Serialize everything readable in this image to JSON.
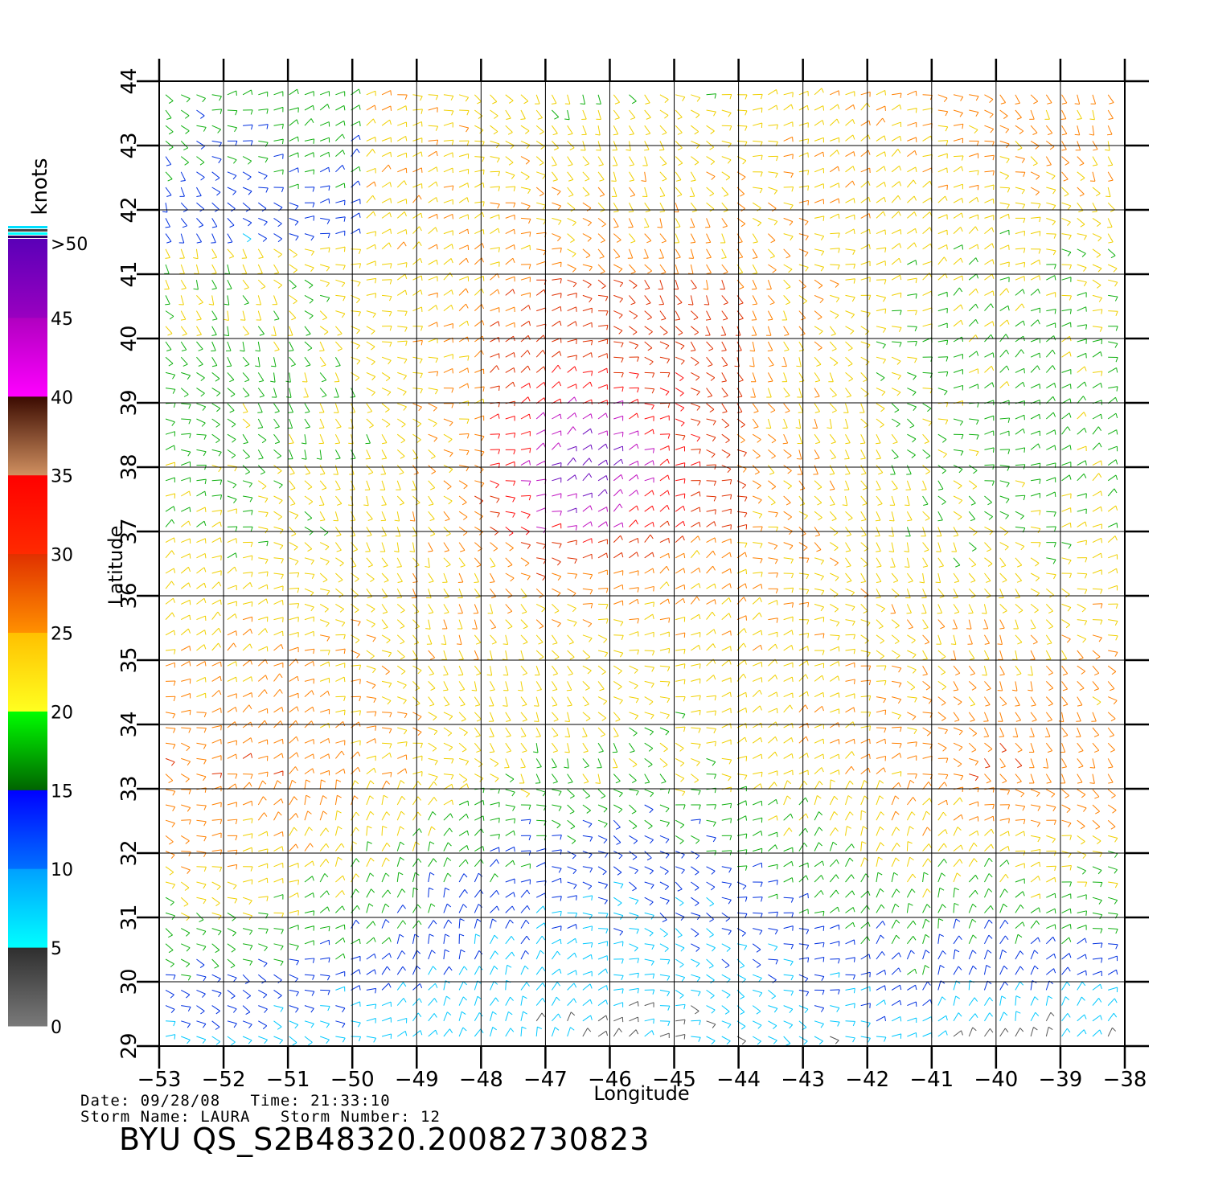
{
  "map": {
    "xlabel": "Longitude",
    "ylabel": "Latitude",
    "lon_ticks": [
      "−53",
      "−52",
      "−51",
      "−50",
      "−49",
      "−48",
      "−47",
      "−46",
      "−45",
      "−44",
      "−43",
      "−42",
      "−41",
      "−40",
      "−39",
      "−38"
    ],
    "lat_ticks": [
      "29",
      "30",
      "31",
      "32",
      "33",
      "34",
      "35",
      "36",
      "37",
      "38",
      "39",
      "40",
      "41",
      "42",
      "43",
      "44"
    ],
    "lon_range": [
      -53,
      -38
    ],
    "lat_range": [
      29,
      44
    ],
    "grid": true
  },
  "legend": {
    "unit": "knots",
    "labels": [
      "0",
      "5",
      "10",
      "15",
      "20",
      "25",
      "30",
      "35",
      "40",
      "45",
      ">50"
    ],
    "bands": [
      {
        "from": 0,
        "to": 5,
        "colors": [
          "#7a7a7a",
          "#2e2e2e"
        ]
      },
      {
        "from": 5,
        "to": 10,
        "colors": [
          "#00ffff",
          "#00a0ff"
        ]
      },
      {
        "from": 10,
        "to": 15,
        "colors": [
          "#0070ff",
          "#0000ff"
        ]
      },
      {
        "from": 15,
        "to": 20,
        "colors": [
          "#006400",
          "#00ff00"
        ]
      },
      {
        "from": 20,
        "to": 25,
        "colors": [
          "#ffff20",
          "#ffc000"
        ]
      },
      {
        "from": 25,
        "to": 30,
        "colors": [
          "#ff9000",
          "#e03000"
        ]
      },
      {
        "from": 30,
        "to": 35,
        "colors": [
          "#ff2a00",
          "#ff0000"
        ]
      },
      {
        "from": 35,
        "to": 40,
        "colors": [
          "#d09060",
          "#3a0a00"
        ]
      },
      {
        "from": 40,
        "to": 45,
        "colors": [
          "#ff00ff",
          "#b000c0"
        ]
      },
      {
        "from": 45,
        "to": 50,
        "colors": [
          "#9a00c0",
          "#5a00b8"
        ]
      }
    ],
    "top_stripe_colors": [
      "#2a0060",
      "#00ffff",
      "#444444",
      "#00e0ff"
    ]
  },
  "meta": {
    "date_label": "Date:",
    "date": "09/28/08",
    "time_label": "Time:",
    "time": "21:33:10",
    "storm_name_label": "Storm  Name:",
    "storm_name": "LAURA",
    "storm_number_label": "Storm  Number:",
    "storm_number": "12",
    "product": "BYU  QS_S2B48320.20082730823"
  }
}
